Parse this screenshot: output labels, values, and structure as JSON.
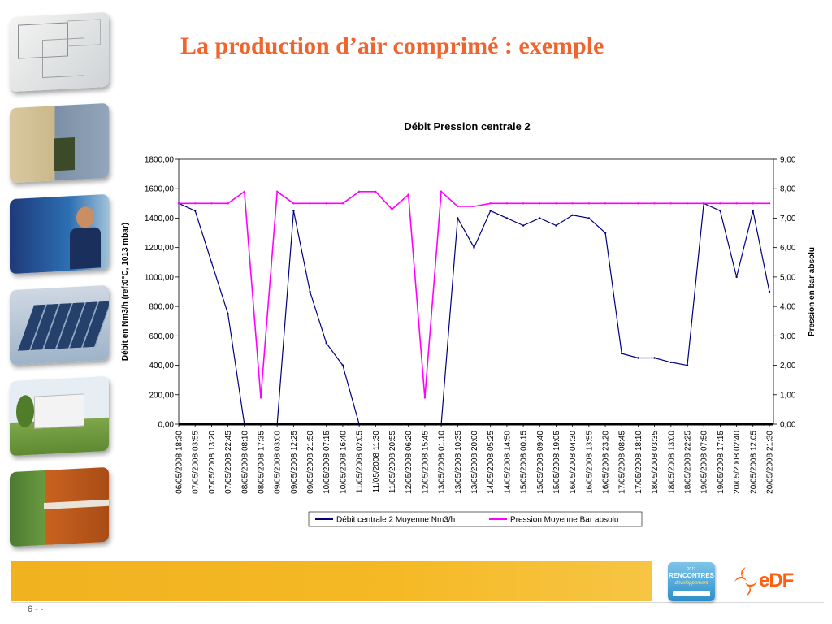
{
  "slide": {
    "title": "La production d’air comprimé : exemple",
    "page_number": "6 -  -"
  },
  "sidebar": {
    "images": [
      "blueprint-photo",
      "building-facade-photo",
      "technician-photo",
      "solar-panels-photo",
      "office-building-photo",
      "orange-building-photo"
    ]
  },
  "logos": {
    "badge_year": "2011",
    "badge_name": "RENCONTRES",
    "badge_sub": "développement",
    "brand": "eDF"
  },
  "colors": {
    "title": "#f0642d",
    "debit": "#000080",
    "pression": "#ff00ff",
    "footer": "#f5b925",
    "edf": "#ff5f0f"
  },
  "chart_data": {
    "type": "line",
    "title": "Débit Pression centrale 2",
    "ylabel_left": "Débit en Nm3/h (ref:0°C, 1013 mbar)",
    "ylabel_right": "Pression en bar absolu",
    "ylim_left": [
      0,
      1800
    ],
    "ylim_right": [
      0,
      9
    ],
    "yticks_left": [
      "0,00",
      "200,00",
      "400,00",
      "600,00",
      "800,00",
      "1000,00",
      "1200,00",
      "1400,00",
      "1600,00",
      "1800,00"
    ],
    "yticks_right": [
      "0,00",
      "1,00",
      "2,00",
      "3,00",
      "4,00",
      "5,00",
      "6,00",
      "7,00",
      "8,00",
      "9,00"
    ],
    "x_range": [
      "06/05/2008 18:30",
      "20/05/2008 23:50"
    ],
    "x_ticks": [
      "06/05/2008 18:30",
      "07/05/2008 03:55",
      "07/05/2008 13:20",
      "07/05/2008 22:45",
      "08/05/2008 08:10",
      "08/05/2008 17:35",
      "09/05/2008 03:00",
      "09/05/2008 12:25",
      "09/05/2008 21:50",
      "10/05/2008 07:15",
      "10/05/2008 16:40",
      "11/05/2008 02:05",
      "11/05/2008 11:30",
      "11/05/2008 20:55",
      "12/05/2008 06:20",
      "12/05/2008 15:45",
      "13/05/2008 01:10",
      "13/05/2008 10:35",
      "13/05/2008 20:00",
      "14/05/2008 05:25",
      "14/05/2008 14:50",
      "15/05/2008 00:15",
      "15/05/2008 09:40",
      "15/05/2008 19:05",
      "16/05/2008 04:30",
      "16/05/2008 13:55",
      "16/05/2008 23:20",
      "17/05/2008 08:45",
      "17/05/2008 18:10",
      "18/05/2008 03:35",
      "18/05/2008 13:00",
      "18/05/2008 22:25",
      "19/05/2008 07:50",
      "19/05/2008 17:15",
      "20/05/2008 02:40",
      "20/05/2008 12:05",
      "20/05/2008 21:30"
    ],
    "legend_position": "bottom",
    "grid": false,
    "series": [
      {
        "name": "Débit centrale 2 Moyenne Nm3/h",
        "axis": "left",
        "x": [
          "06/05/2008 18:30",
          "07/05/2008 03:55",
          "07/05/2008 13:20",
          "07/05/2008 22:45",
          "08/05/2008 08:10",
          "08/05/2008 17:35",
          "09/05/2008 03:00",
          "09/05/2008 12:25",
          "09/05/2008 21:50",
          "10/05/2008 07:15",
          "10/05/2008 16:40",
          "11/05/2008 02:05",
          "11/05/2008 11:30",
          "11/05/2008 20:55",
          "12/05/2008 06:20",
          "12/05/2008 15:45",
          "13/05/2008 01:10",
          "13/05/2008 10:35",
          "13/05/2008 20:00",
          "14/05/2008 05:25",
          "14/05/2008 14:50",
          "15/05/2008 00:15",
          "15/05/2008 09:40",
          "15/05/2008 19:05",
          "16/05/2008 04:30",
          "16/05/2008 13:55",
          "16/05/2008 23:20",
          "17/05/2008 08:45",
          "17/05/2008 18:10",
          "18/05/2008 03:35",
          "18/05/2008 13:00",
          "18/05/2008 22:25",
          "19/05/2008 07:50",
          "19/05/2008 17:15",
          "20/05/2008 02:40",
          "20/05/2008 12:05",
          "20/05/2008 21:30"
        ],
        "values": [
          1500,
          1450,
          1100,
          750,
          0,
          0,
          0,
          1450,
          900,
          550,
          400,
          0,
          0,
          0,
          0,
          0,
          0,
          1400,
          1200,
          1450,
          1400,
          1350,
          1400,
          1350,
          1420,
          1400,
          1300,
          480,
          450,
          450,
          420,
          400,
          1500,
          1450,
          1000,
          1450,
          900
        ]
      },
      {
        "name": "Pression Moyenne Bar absolu",
        "axis": "right",
        "x": [
          "06/05/2008 18:30",
          "07/05/2008 03:55",
          "07/05/2008 13:20",
          "07/05/2008 22:45",
          "08/05/2008 08:10",
          "08/05/2008 17:35",
          "09/05/2008 03:00",
          "09/05/2008 12:25",
          "09/05/2008 21:50",
          "10/05/2008 07:15",
          "10/05/2008 16:40",
          "11/05/2008 02:05",
          "11/05/2008 11:30",
          "11/05/2008 20:55",
          "12/05/2008 06:20",
          "12/05/2008 15:45",
          "13/05/2008 01:10",
          "13/05/2008 10:35",
          "13/05/2008 20:00",
          "14/05/2008 05:25",
          "14/05/2008 14:50",
          "15/05/2008 00:15",
          "15/05/2008 09:40",
          "15/05/2008 19:05",
          "16/05/2008 04:30",
          "16/05/2008 13:55",
          "16/05/2008 23:20",
          "17/05/2008 08:45",
          "17/05/2008 18:10",
          "18/05/2008 03:35",
          "18/05/2008 13:00",
          "18/05/2008 22:25",
          "19/05/2008 07:50",
          "19/05/2008 17:15",
          "20/05/2008 02:40",
          "20/05/2008 12:05",
          "20/05/2008 21:30"
        ],
        "values": [
          7.5,
          7.5,
          7.5,
          7.5,
          7.9,
          0.9,
          7.9,
          7.5,
          7.5,
          7.5,
          7.5,
          7.9,
          7.9,
          7.3,
          7.8,
          0.9,
          7.9,
          7.4,
          7.4,
          7.5,
          7.5,
          7.5,
          7.5,
          7.5,
          7.5,
          7.5,
          7.5,
          7.5,
          7.5,
          7.5,
          7.5,
          7.5,
          7.5,
          7.5,
          7.5,
          7.5,
          7.5
        ]
      }
    ]
  }
}
